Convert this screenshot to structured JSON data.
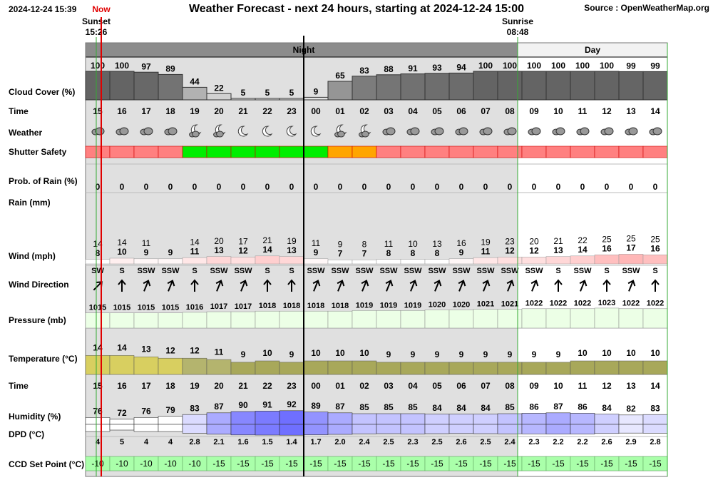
{
  "header": {
    "timestamp": "2024-12-24 15:39",
    "now": "Now",
    "title": "Weather Forecast - next 24 hours, starting at 2024-12-24 15:00",
    "source": "Source : OpenWeatherMap.org",
    "sunset": {
      "label": "Sunset",
      "time": "15:26"
    },
    "sunrise": {
      "label": "Sunrise",
      "time": "08:48"
    },
    "night": "Night",
    "day": "Day"
  },
  "row_labels": [
    "Cloud Cover (%)",
    "Time",
    "Weather",
    "Shutter Safety",
    "Prob. of Rain (%)",
    "Rain (mm)",
    "Wind (mph)",
    "Wind Direction",
    "Pressure (mb)",
    "Temperature (°C)",
    "Time",
    "Humidity (%)",
    "DPD (°C)",
    "CCD Set Point (°C)"
  ],
  "hours": [
    "15",
    "16",
    "17",
    "18",
    "19",
    "20",
    "21",
    "22",
    "23",
    "00",
    "01",
    "02",
    "03",
    "04",
    "05",
    "06",
    "07",
    "08",
    "09",
    "10",
    "11",
    "12",
    "13",
    "14"
  ],
  "cloud_cover": [
    100,
    100,
    97,
    89,
    44,
    22,
    5,
    5,
    5,
    9,
    65,
    83,
    88,
    91,
    93,
    94,
    100,
    100,
    100,
    100,
    100,
    100,
    99,
    99
  ],
  "shutter_safety_colors": [
    "#ff8080",
    "#ff8080",
    "#ff8080",
    "#ff8080",
    "#00ee00",
    "#00ee00",
    "#00ee00",
    "#00ee00",
    "#00ee00",
    "#00ee00",
    "#ffa500",
    "#ffa500",
    "#ff8080",
    "#ff8080",
    "#ff8080",
    "#ff8080",
    "#ff8080",
    "#ff8080",
    "#ff8080",
    "#ff8080",
    "#ff8080",
    "#ff8080",
    "#ff8080",
    "#ff8080"
  ],
  "rain_probability": [
    0,
    0,
    0,
    0,
    0,
    0,
    0,
    0,
    0,
    0,
    0,
    0,
    0,
    0,
    0,
    0,
    0,
    0,
    0,
    0,
    0,
    0,
    0,
    0
  ],
  "wind_gust": [
    14,
    14,
    11,
    null,
    14,
    20,
    17,
    21,
    19,
    11,
    9,
    8,
    11,
    10,
    13,
    16,
    19,
    23,
    20,
    21,
    22,
    25,
    25,
    25
  ],
  "wind_speed": [
    8,
    10,
    9,
    9,
    11,
    13,
    12,
    14,
    13,
    9,
    7,
    7,
    8,
    8,
    8,
    9,
    11,
    12,
    12,
    13,
    14,
    16,
    17,
    16
  ],
  "wind_direction": [
    "SW",
    "S",
    "SSW",
    "SSW",
    "S",
    "SSW",
    "SSW",
    "S",
    "S",
    "SSW",
    "SSW",
    "SSW",
    "SSW",
    "SSW",
    "SSW",
    "SSW",
    "SSW",
    "SSW",
    "SSW",
    "S",
    "SSW",
    "S",
    "SSW",
    "S"
  ],
  "pressure": [
    1015,
    1015,
    1015,
    1015,
    1016,
    1017,
    1017,
    1018,
    1018,
    1018,
    1018,
    1019,
    1019,
    1019,
    1020,
    1020,
    1021,
    1021,
    1022,
    1022,
    1022,
    1023,
    1022,
    1022
  ],
  "temperature": [
    14,
    14,
    13,
    12,
    12,
    11,
    9,
    10,
    9,
    10,
    10,
    10,
    9,
    9,
    9,
    9,
    9,
    9,
    9,
    9,
    10,
    10,
    10,
    10
  ],
  "humidity": [
    76,
    72,
    76,
    79,
    83,
    87,
    90,
    91,
    92,
    89,
    87,
    85,
    85,
    85,
    84,
    84,
    84,
    85,
    86,
    87,
    86,
    84,
    82,
    83
  ],
  "dpd": {
    "values": [
      4,
      5,
      4,
      4,
      2.8,
      2.1,
      1.6,
      1.5,
      1.4,
      1.7,
      2.0,
      2.4,
      2.5,
      2.3,
      2.5,
      2.6,
      2.5,
      2.4,
      2.3,
      2.2,
      2.2,
      2.6,
      2.9,
      2.8
    ],
    "value_labels": [
      "4",
      "5",
      "4",
      "4",
      "2.8",
      "2.1",
      "1.6",
      "1.5",
      "1.4",
      "1.7",
      "2.0",
      "2.4",
      "2.5",
      "2.3",
      "2.5",
      "2.6",
      "2.5",
      "2.4",
      "2.3",
      "2.2",
      "2.2",
      "2.6",
      "2.9",
      "2.8"
    ]
  },
  "ccd_set_point": [
    -10,
    -10,
    -10,
    -10,
    -10,
    -15,
    -15,
    -15,
    -15,
    -15,
    -15,
    -15,
    -15,
    -15,
    -15,
    -15,
    -15,
    -15,
    -15,
    -15,
    -15,
    -15,
    -15,
    -15
  ]
}
